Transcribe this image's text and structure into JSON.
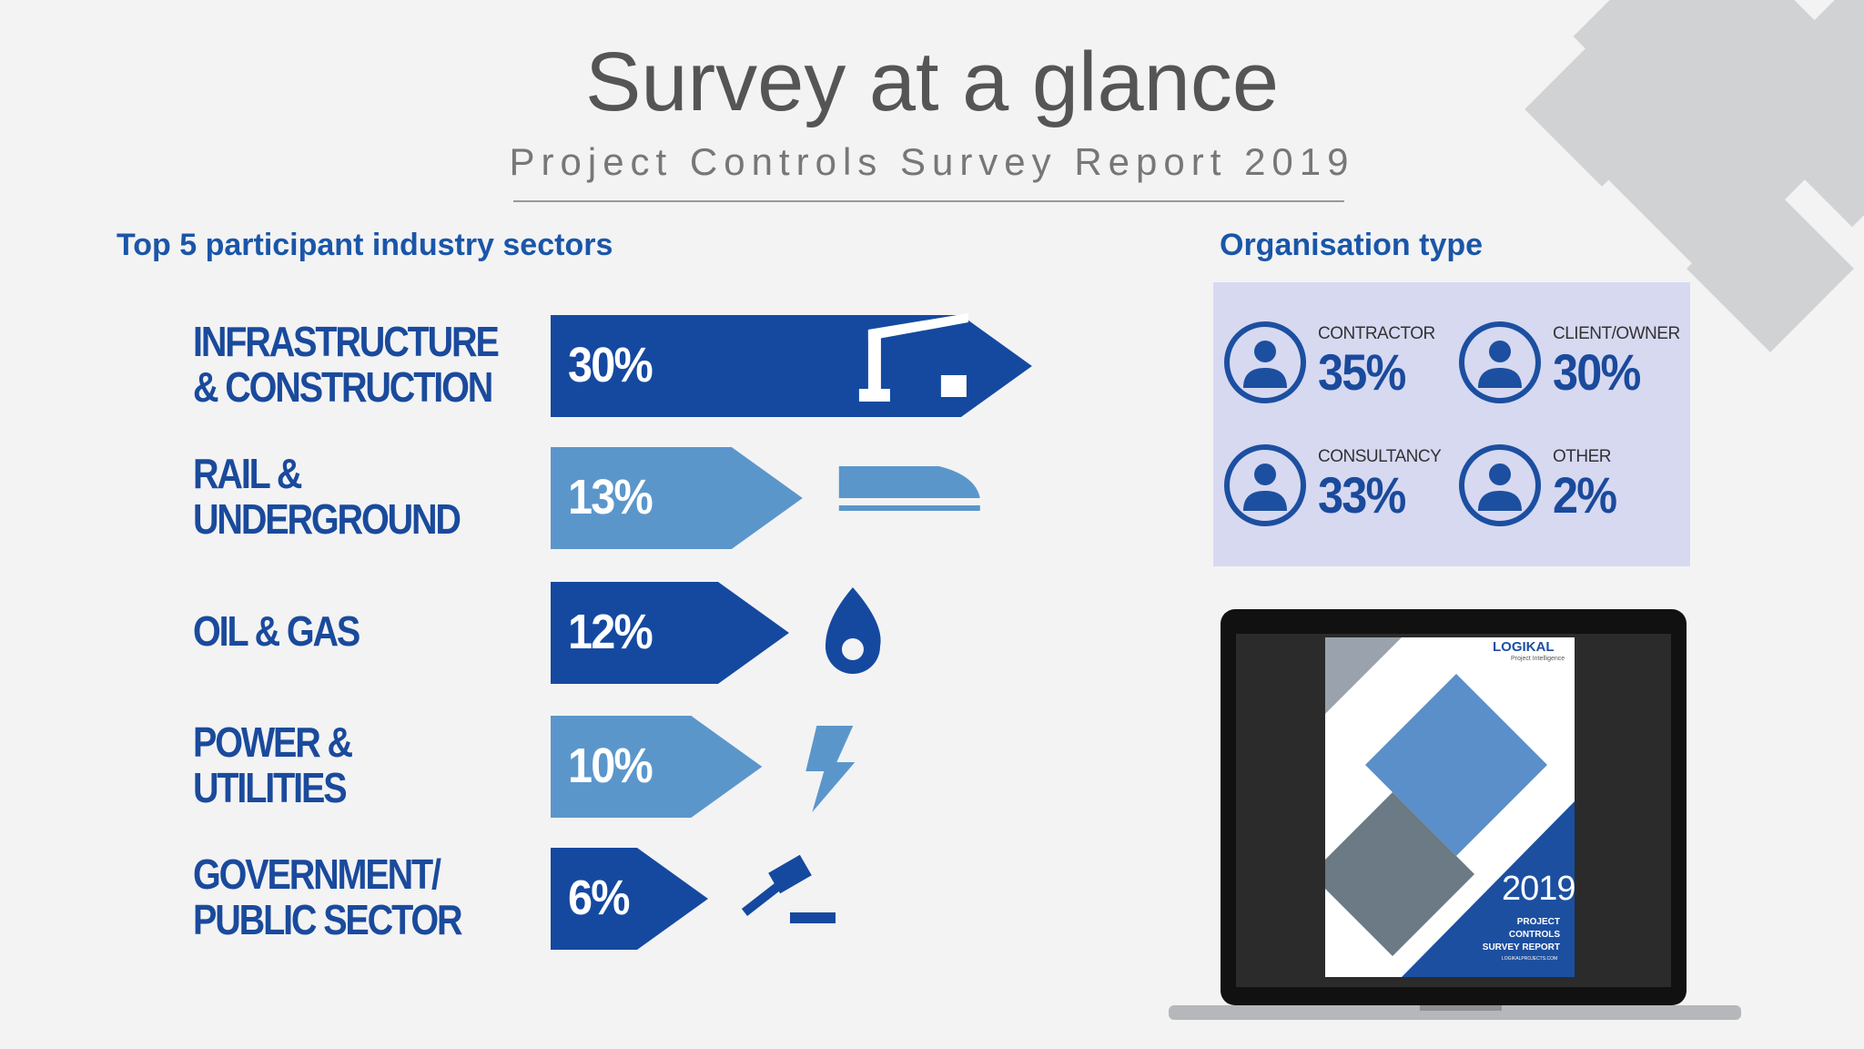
{
  "header": {
    "title": "Survey at a glance",
    "subtitle": "Project Controls Survey Report 2019"
  },
  "sectors": {
    "heading": "Top 5 participant industry sectors",
    "items": [
      {
        "label": "INFRASTRUCTURE\n& CONSTRUCTION",
        "value": 30,
        "value_label": "30%"
      },
      {
        "label": "RAIL &\nUNDERGROUND",
        "value": 13,
        "value_label": "13%"
      },
      {
        "label": "OIL & GAS",
        "value": 12,
        "value_label": "12%"
      },
      {
        "label": "POWER &\nUTILITIES",
        "value": 10,
        "value_label": "10%"
      },
      {
        "label": "GOVERNMENT/\nPUBLIC SECTOR",
        "value": 6,
        "value_label": "6%"
      }
    ]
  },
  "organisation": {
    "heading": "Organisation type",
    "items": [
      {
        "label": "CONTRACTOR",
        "value": 35,
        "value_label": "35%"
      },
      {
        "label": "CLIENT/OWNER",
        "value": 30,
        "value_label": "30%"
      },
      {
        "label": "CONSULTANCY",
        "value": 33,
        "value_label": "33%"
      },
      {
        "label": "OTHER",
        "value": 2,
        "value_label": "2%"
      }
    ]
  },
  "report_cover": {
    "logo": "LOGIKAL",
    "tagline": "Project Intelligence",
    "year": "2019",
    "title": "PROJECT CONTROLS\nSURVEY REPORT",
    "url": "LOGIKALPROJECTS.COM"
  }
}
